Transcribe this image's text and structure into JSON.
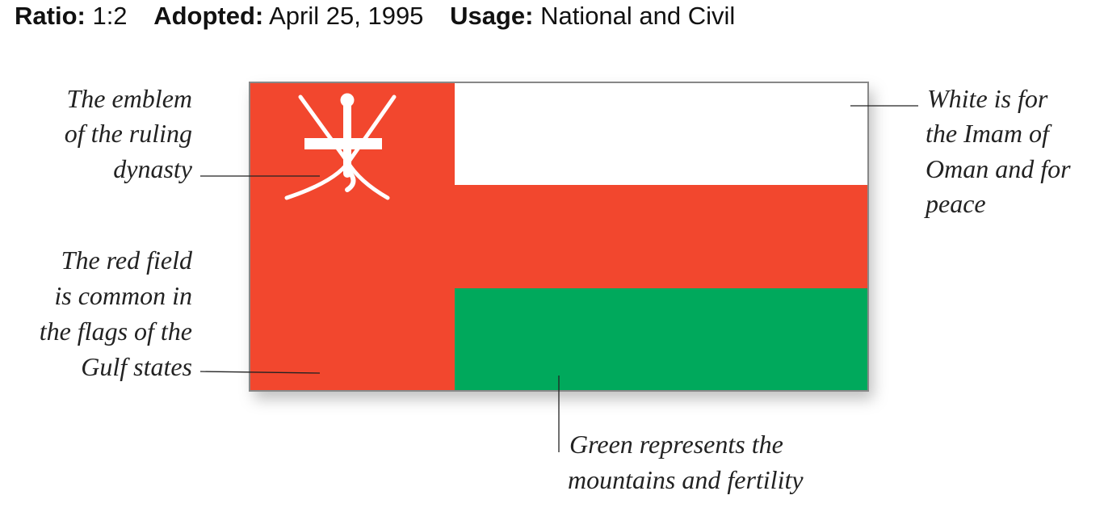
{
  "header": {
    "ratio_label": "Ratio:",
    "ratio": "1:2",
    "adopted_label": "Adopted:",
    "adopted": "April 25, 1995",
    "usage_label": "Usage:",
    "usage": "National and Civil"
  },
  "annotations": {
    "emblem": [
      "The emblem",
      "of the ruling",
      "dynasty"
    ],
    "red": [
      "The red field",
      "is common in",
      "the flags of the",
      "Gulf states"
    ],
    "white": [
      "White is for",
      "the Imam of",
      "Oman and for",
      "peace"
    ],
    "green": [
      "Green represents the",
      "mountains and fertility"
    ]
  }
}
